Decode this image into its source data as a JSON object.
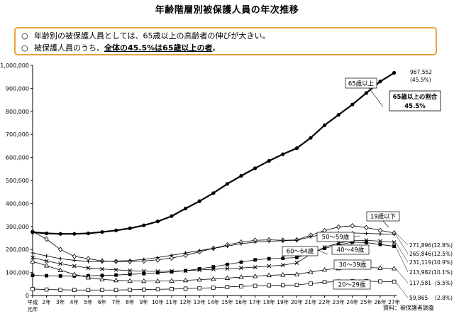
{
  "title": "年齢階層別被保護人員の年次推移",
  "summary": {
    "bullet_mark": "○",
    "line1": "年齢別の被保護人員としては、65歳以上の高齢者の伸びが大きい。",
    "line2_pre": "被保護人員のうち、",
    "line2_hl": "全体の45.5%は65歳以上の者",
    "line2_post": "。"
  },
  "source": "資料：被保護者調査",
  "chart_data": {
    "type": "line",
    "x": [
      "平成元年",
      "2年",
      "3年",
      "4年",
      "5年",
      "6年",
      "7年",
      "8年",
      "9年",
      "10年",
      "11年",
      "12年",
      "13年",
      "14年",
      "15年",
      "16年",
      "17年",
      "18年",
      "19年",
      "20年",
      "21年",
      "22年",
      "23年",
      "24年",
      "25年",
      "26年",
      "27年"
    ],
    "x_tick_labels": [
      "平成",
      "2年",
      "3年",
      "4年",
      "5年",
      "6年",
      "7年",
      "8年",
      "9年",
      "10年",
      "11年",
      "12年",
      "13年",
      "14年",
      "15年",
      "16年",
      "17年",
      "18年",
      "19年",
      "20年",
      "21年",
      "22年",
      "23年",
      "24年",
      "25年",
      "26年",
      "27年"
    ],
    "x_first_sublabel": "元年",
    "ylim": [
      0,
      1000000
    ],
    "y_ticks": [
      0,
      100000,
      200000,
      300000,
      400000,
      500000,
      600000,
      700000,
      800000,
      900000,
      1000000
    ],
    "y_tick_labels": [
      "0",
      "100,000",
      "200,000",
      "300,000",
      "400,000",
      "500,000",
      "600,000",
      "700,000",
      "800,000",
      "900,000",
      "1,000,000"
    ],
    "grid": false,
    "series": [
      {
        "name": "65歳以上",
        "marker": "dot",
        "bold": true,
        "values": [
          275000,
          270000,
          268000,
          268000,
          270000,
          276000,
          283000,
          292000,
          305000,
          322000,
          345000,
          378000,
          410000,
          445000,
          485000,
          520000,
          553000,
          585000,
          614000,
          640000,
          685000,
          740000,
          785000,
          830000,
          880000,
          930000,
          967552
        ],
        "end_label": "967,552",
        "end_pct": "(45.5%)"
      },
      {
        "name": "19歳以下",
        "marker": "diamond",
        "values": [
          278000,
          245000,
          200000,
          170000,
          160000,
          150000,
          148000,
          148000,
          150000,
          155000,
          163000,
          175000,
          190000,
          205000,
          220000,
          232000,
          240000,
          242000,
          240000,
          242000,
          262000,
          282000,
          298000,
          303000,
          295000,
          283000,
          271896
        ],
        "end_label": "271,896",
        "end_pct": "(12.8%)"
      },
      {
        "name": "50～59歳",
        "marker": "plus",
        "values": [
          185000,
          172000,
          160000,
          153000,
          148000,
          148000,
          150000,
          152000,
          157000,
          165000,
          175000,
          185000,
          195000,
          205000,
          215000,
          225000,
          232000,
          236000,
          238000,
          240000,
          255000,
          268000,
          272000,
          272000,
          270000,
          268000,
          265846
        ],
        "end_label": "265,846",
        "end_pct": "(12.5%)"
      },
      {
        "name": "40～49歳",
        "marker": "cross",
        "values": [
          165000,
          150000,
          138000,
          128000,
          120000,
          115000,
          112000,
          108000,
          106000,
          105000,
          106000,
          108000,
          111000,
          114000,
          117000,
          120000,
          123000,
          128000,
          132000,
          142000,
          180000,
          210000,
          228000,
          238000,
          240000,
          236000,
          231119
        ],
        "end_label": "231,119",
        "end_pct": "(10.9%)"
      },
      {
        "name": "60～64歳",
        "marker": "square-filled",
        "values": [
          88000,
          86000,
          85000,
          85000,
          86000,
          87000,
          89000,
          92000,
          95000,
          99000,
          103000,
          108000,
          116000,
          125000,
          135000,
          145000,
          155000,
          160000,
          162000,
          165000,
          185000,
          205000,
          220000,
          232000,
          230000,
          222000,
          213982
        ],
        "end_label": "213,982",
        "end_pct": "(10.1%)"
      },
      {
        "name": "30～39歳",
        "marker": "triangle",
        "values": [
          148000,
          130000,
          110000,
          92000,
          78000,
          70000,
          66000,
          64000,
          63000,
          63000,
          64000,
          66000,
          69000,
          72000,
          76000,
          80000,
          84000,
          88000,
          90000,
          92000,
          102000,
          112000,
          118000,
          122000,
          122000,
          120000,
          117581
        ],
        "end_label": "117,581",
        "end_pct": "(5.5%)"
      },
      {
        "name": "20～29歳",
        "marker": "square-open",
        "values": [
          28000,
          26000,
          25000,
          24000,
          24000,
          24000,
          24000,
          25000,
          26000,
          27000,
          28000,
          30000,
          32000,
          34000,
          37000,
          40000,
          42000,
          44000,
          45000,
          46000,
          52000,
          58000,
          61000,
          62000,
          62000,
          61000,
          59865
        ],
        "end_label": "59,865",
        "end_pct": "(2.8%)"
      }
    ],
    "callout": {
      "line1": "65歳以上の割合",
      "line2": "45.5%"
    }
  },
  "colors": {
    "summary_border": "#e8a33a",
    "line": "#000000",
    "axis": "#000000"
  }
}
